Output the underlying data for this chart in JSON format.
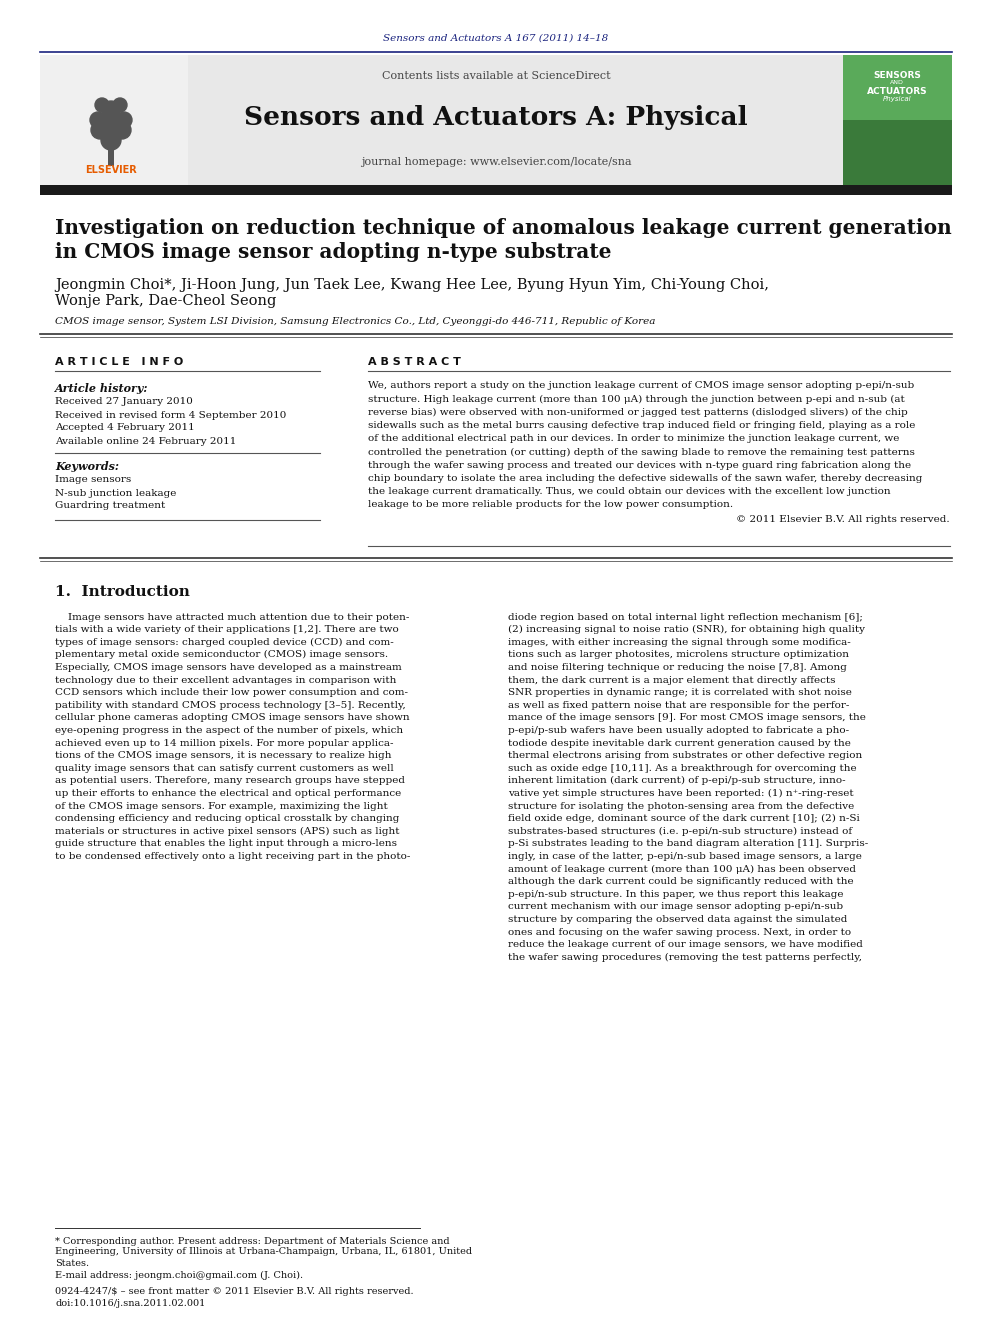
{
  "bg_color": "#ffffff",
  "header_journal_text": "Sensors and Actuators A 167 (2011) 14–18",
  "header_journal_color": "#1a237e",
  "contents_text": "Contents lists available at",
  "sciencedirect_text": "ScienceDirect",
  "sciencedirect_color": "#1565c0",
  "journal_name": "Sensors and Actuators A: Physical",
  "journal_homepage_text": "journal homepage: ",
  "journal_url": "www.elsevier.com/locate/sna",
  "journal_url_color": "#1565c0",
  "header_bg": "#e8e8e8",
  "dark_bar_color": "#1a1a1a",
  "paper_title_line1": "Investigation on reduction technique of anomalous leakage current generation",
  "paper_title_line2": "in CMOS image sensor adopting n-type substrate",
  "authors": "Jeongmin Choi*, Ji-Hoon Jung, Jun Taek Lee, Kwang Hee Lee, Byung Hyun Yim, Chi-Young Choi,",
  "authors_line2": "Wonje Park, Dae-Cheol Seong",
  "affiliation": "CMOS image sensor, System LSI Division, Samsung Electronics Co., Ltd, Cyeonggi-do 446-711, Republic of Korea",
  "article_info_label": "A R T I C L E   I N F O",
  "abstract_label": "A B S T R A C T",
  "article_history_label": "Article history:",
  "received": "Received 27 January 2010",
  "received_revised": "Received in revised form 4 September 2010",
  "accepted": "Accepted 4 February 2011",
  "available": "Available online 24 February 2011",
  "keywords_label": "Keywords:",
  "kw1": "Image sensors",
  "kw2": "N-sub junction leakage",
  "kw3": "Guardring treatment",
  "abstract_text": "We, authors report a study on the junction leakage current of CMOS image sensor adopting p-epi/n-sub\nstructure. High leakage current (more than 100 μA) through the junction between p-epi and n-sub (at\nreverse bias) were observed with non-uniformed or jagged test patterns (dislodged slivers) of the chip\nsidewalls such as the metal burrs causing defective trap induced field or fringing field, playing as a role\nof the additional electrical path in our devices. In order to minimize the junction leakage current, we\ncontrolled the penetration (or cutting) depth of the sawing blade to remove the remaining test patterns\nthrough the wafer sawing process and treated our devices with n-type guard ring fabrication along the\nchip boundary to isolate the area including the defective sidewalls of the sawn wafer, thereby decreasing\nthe leakage current dramatically. Thus, we could obtain our devices with the excellent low junction\nleakage to be more reliable products for the low power consumption.",
  "copyright": "© 2011 Elsevier B.V. All rights reserved.",
  "intro_heading": "1.  Introduction",
  "intro_col1": "    Image sensors have attracted much attention due to their poten-\ntials with a wide variety of their applications [1,2]. There are two\ntypes of image sensors: charged coupled device (CCD) and com-\nplementary metal oxide semiconductor (CMOS) image sensors.\nEspecially, CMOS image sensors have developed as a mainstream\ntechnology due to their excellent advantages in comparison with\nCCD sensors which include their low power consumption and com-\npatibility with standard CMOS process technology [3–5]. Recently,\ncellular phone cameras adopting CMOS image sensors have shown\neye-opening progress in the aspect of the number of pixels, which\nachieved even up to 14 million pixels. For more popular applica-\ntions of the CMOS image sensors, it is necessary to realize high\nquality image sensors that can satisfy current customers as well\nas potential users. Therefore, many research groups have stepped\nup their efforts to enhance the electrical and optical performance\nof the CMOS image sensors. For example, maximizing the light\ncondensing efficiency and reducing optical crosstalk by changing\nmaterials or structures in active pixel sensors (APS) such as light\nguide structure that enables the light input through a micro-lens\nto be condensed effectively onto a light receiving part in the photo-",
  "intro_col2": "diode region based on total internal light reflection mechanism [6];\n(2) increasing signal to noise ratio (SNR), for obtaining high quality\nimages, with either increasing the signal through some modifica-\ntions such as larger photosites, microlens structure optimization\nand noise filtering technique or reducing the noise [7,8]. Among\nthem, the dark current is a major element that directly affects\nSNR properties in dynamic range; it is correlated with shot noise\nas well as fixed pattern noise that are responsible for the perfor-\nmance of the image sensors [9]. For most CMOS image sensors, the\np-epi/p-sub wafers have been usually adopted to fabricate a pho-\ntodiode despite inevitable dark current generation caused by the\nthermal electrons arising from substrates or other defective region\nsuch as oxide edge [10,11]. As a breakthrough for overcoming the\ninherent limitation (dark current) of p-epi/p-sub structure, inno-\nvative yet simple structures have been reported: (1) n⁺-ring-reset\nstructure for isolating the photon-sensing area from the defective\nfield oxide edge, dominant source of the dark current [10]; (2) n-Si\nsubstrates-based structures (i.e. p-epi/n-sub structure) instead of\np-Si substrates leading to the band diagram alteration [11]. Surpris-\ningly, in case of the latter, p-epi/n-sub based image sensors, a large\namount of leakage current (more than 100 μA) has been observed\nalthough the dark current could be significantly reduced with the\np-epi/n-sub structure. In this paper, we thus report this leakage\ncurrent mechanism with our image sensor adopting p-epi/n-sub\nstructure by comparing the observed data against the simulated\nones and focusing on the wafer sawing process. Next, in order to\nreduce the leakage current of our image sensors, we have modified\nthe wafer sawing procedures (removing the test patterns perfectly,",
  "footnote_star": "* Corresponding author. Present address: Department of Materials Science and\nEngineering, University of Illinois at Urbana-Champaign, Urbana, IL, 61801, United\nStates.",
  "footnote_email": "E-mail address: jeongm.choi@gmail.com (J. Choi).",
  "footnote_issn": "0924-4247/$ – see front matter © 2011 Elsevier B.V. All rights reserved.",
  "footnote_doi": "doi:10.1016/j.sna.2011.02.001",
  "ref_color": "#1565c0"
}
